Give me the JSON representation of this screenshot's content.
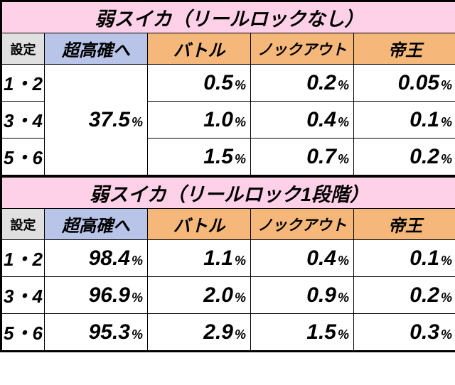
{
  "tables": [
    {
      "title": "弱スイカ（リールロックなし）",
      "columns": {
        "settei": "設定",
        "chokokaku": "超高確へ",
        "battle": "バトル",
        "knockout": "ノックアウト",
        "teio": "帝王"
      },
      "merged_chokokaku": "37.5",
      "rows": [
        {
          "settei": "1・2",
          "battle": "0.5",
          "knockout": "0.2",
          "teio": "0.05"
        },
        {
          "settei": "3・4",
          "battle": "1.0",
          "knockout": "0.4",
          "teio": "0.1"
        },
        {
          "settei": "5・6",
          "battle": "1.5",
          "knockout": "0.7",
          "teio": "0.2"
        }
      ]
    },
    {
      "title": "弱スイカ（リールロック1段階）",
      "columns": {
        "settei": "設定",
        "chokokaku": "超高確へ",
        "battle": "バトル",
        "knockout": "ノックアウト",
        "teio": "帝王"
      },
      "rows": [
        {
          "settei": "1・2",
          "chokokaku": "98.4",
          "battle": "1.1",
          "knockout": "0.4",
          "teio": "0.1"
        },
        {
          "settei": "3・4",
          "chokokaku": "96.9",
          "battle": "2.0",
          "knockout": "0.9",
          "teio": "0.2"
        },
        {
          "settei": "5・6",
          "chokokaku": "95.3",
          "battle": "2.9",
          "knockout": "1.5",
          "teio": "0.3"
        }
      ]
    }
  ],
  "styling": {
    "title_bg": "#ffd1e8",
    "settei_header_bg": "#e0e0e0",
    "chokokaku_header_bg": "#b8c5e8",
    "orange_header_bg": "#f5b87a",
    "border_color": "#000000",
    "cell_bg": "#ffffff",
    "title_fontsize": 27,
    "header_fontsize": 24,
    "settei_header_fontsize": 18,
    "num_fontsize": 30,
    "pct_fontsize": 18,
    "settei_fontsize": 26,
    "col_settei_width": 60,
    "col_data_width": 145,
    "pct_symbol": "%"
  }
}
